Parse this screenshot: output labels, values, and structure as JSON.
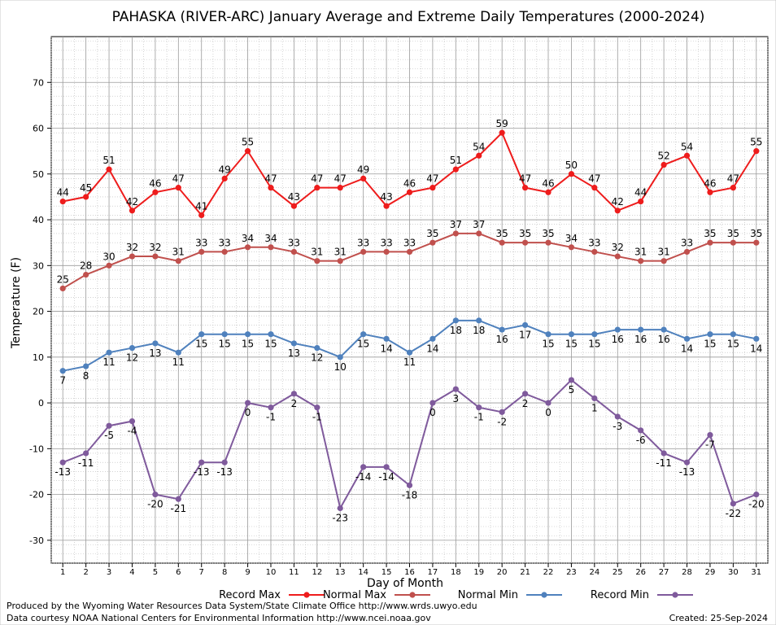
{
  "chart_data": {
    "type": "line",
    "title": "PAHASKA (RIVER-ARC) January Average and Extreme Daily Temperatures (2000-2024)",
    "xlabel": "Day of Month",
    "ylabel": "Temperature (F)",
    "ylim": [
      -35,
      80
    ],
    "xlim": [
      0.5,
      31.5
    ],
    "yticks": [
      -30,
      -20,
      -10,
      0,
      10,
      20,
      30,
      40,
      50,
      60,
      70
    ],
    "x": [
      1,
      2,
      3,
      4,
      5,
      6,
      7,
      8,
      9,
      10,
      11,
      12,
      13,
      14,
      15,
      16,
      17,
      18,
      19,
      20,
      21,
      22,
      23,
      24,
      25,
      26,
      27,
      28,
      29,
      30,
      31
    ],
    "grid": true,
    "legend_position": "bottom",
    "series": [
      {
        "name": "Record Max",
        "color": "#ee1c1c",
        "values": [
          44,
          45,
          51,
          42,
          46,
          47,
          41,
          49,
          55,
          47,
          43,
          47,
          47,
          49,
          43,
          46,
          47,
          51,
          54,
          59,
          47,
          46,
          50,
          47,
          42,
          44,
          52,
          54,
          46,
          47,
          55
        ]
      },
      {
        "name": "Normal Max",
        "color": "#c0504d",
        "values": [
          25,
          28,
          30,
          32,
          32,
          31,
          33,
          33,
          34,
          34,
          33,
          31,
          31,
          33,
          33,
          33,
          35,
          37,
          37,
          35,
          35,
          35,
          34,
          33,
          32,
          31,
          31,
          33,
          35,
          35,
          35
        ]
      },
      {
        "name": "Normal Min",
        "color": "#4f81bd",
        "values": [
          7,
          8,
          11,
          12,
          13,
          11,
          15,
          15,
          15,
          15,
          13,
          12,
          10,
          15,
          14,
          11,
          14,
          18,
          18,
          16,
          17,
          15,
          15,
          15,
          16,
          16,
          16,
          14,
          15,
          15,
          14
        ]
      },
      {
        "name": "Record Min",
        "color": "#7f5a9c",
        "values": [
          -13,
          -11,
          -5,
          -4,
          -20,
          -21,
          -13,
          -13,
          0,
          -1,
          2,
          -1,
          -23,
          -14,
          -14,
          -18,
          0,
          3,
          -1,
          -2,
          2,
          0,
          5,
          1,
          -3,
          -6,
          -11,
          -13,
          -7,
          -22,
          -20
        ]
      }
    ]
  },
  "footer": {
    "produced_by": "Produced by the Wyoming Water Resources Data System/State Climate Office http://www.wrds.uwyo.edu",
    "data_courtesy": "Data courtesy NOAA National Centers for Environmental Information http://www.ncei.noaa.gov",
    "created": "Created:  25-Sep-2024"
  }
}
